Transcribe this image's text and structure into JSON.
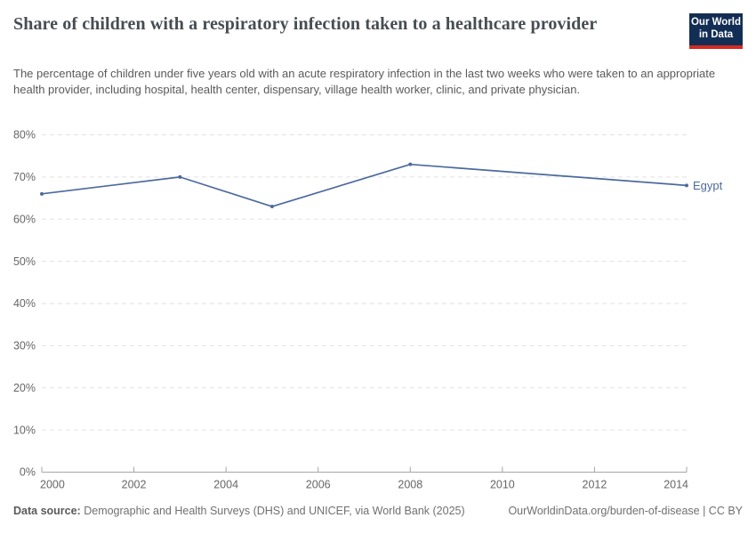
{
  "header": {
    "title": "Share of children with a respiratory infection taken to a healthcare provider",
    "subtitle": "The percentage of children under five years old with an acute respiratory infection in the last two weeks who were taken to an appropriate health provider, including hospital, health center, dispensary, village health worker, clinic, and private physician.",
    "logo": {
      "line1": "Our World",
      "line2": "in Data",
      "bg_color": "#132e54",
      "accent_color": "#d42b21"
    }
  },
  "chart_data": {
    "type": "line",
    "title": "Share of children with a respiratory infection taken to a healthcare provider",
    "series": [
      {
        "name": "Egypt",
        "color": "#4C6A9C",
        "points": [
          [
            2000,
            66
          ],
          [
            2003,
            70
          ],
          [
            2005,
            63
          ],
          [
            2008,
            73
          ],
          [
            2014,
            68
          ]
        ]
      }
    ],
    "xlim": [
      2000,
      2014
    ],
    "ylim": [
      0,
      80
    ],
    "xticks": [
      2000,
      2002,
      2004,
      2006,
      2008,
      2010,
      2012,
      2014
    ],
    "xtick_labels": [
      "2000",
      "2002",
      "2004",
      "2006",
      "2008",
      "2010",
      "2012",
      "2014"
    ],
    "yticks": [
      0,
      10,
      20,
      30,
      40,
      50,
      60,
      70,
      80
    ],
    "ytick_labels": [
      "0%",
      "10%",
      "20%",
      "30%",
      "40%",
      "50%",
      "60%",
      "70%",
      "80%"
    ],
    "grid": "horizontal-dashed",
    "legend_position": "line-end-label",
    "grid_color": "#e2e2e2",
    "axis_color": "#a6a6a6",
    "tick_text_color": "#666666"
  },
  "footer": {
    "source_label": "Data source:",
    "source_text": "Demographic and Health Surveys (DHS) and UNICEF, via World Bank (2025)",
    "attribution": "OurWorldinData.org/burden-of-disease | CC BY"
  }
}
